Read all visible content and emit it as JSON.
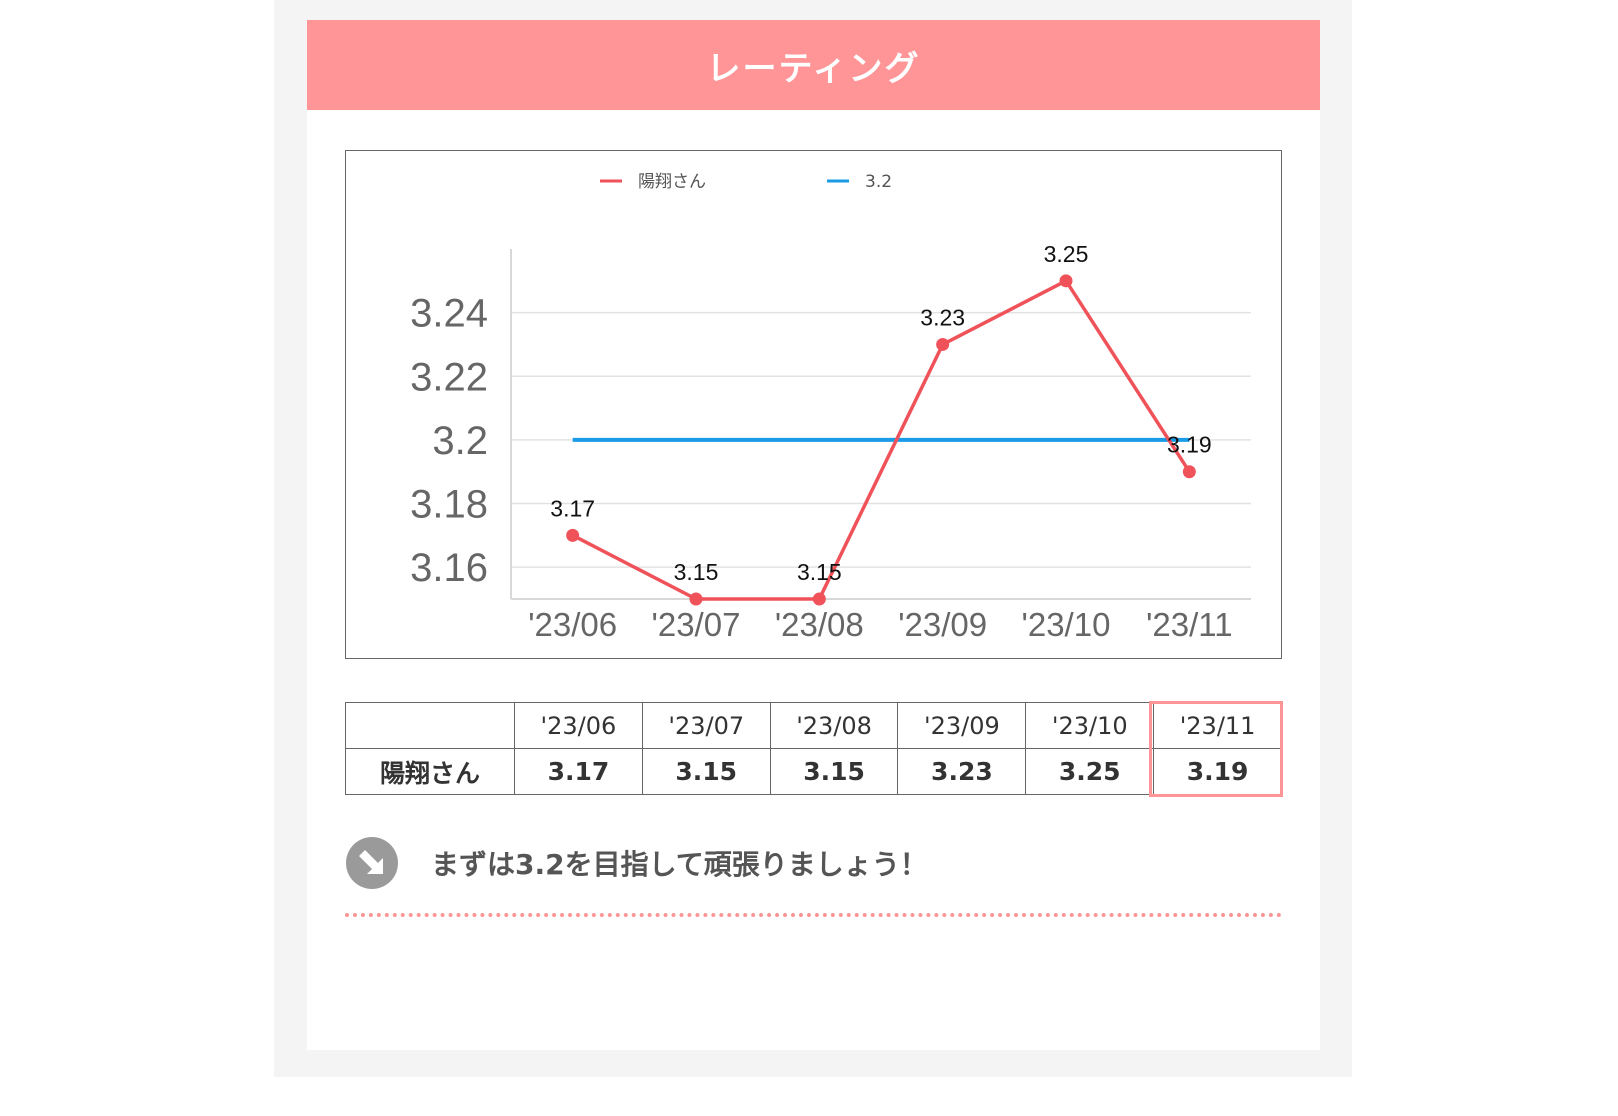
{
  "header": {
    "title": "レーティング"
  },
  "legend": {
    "series_label": "陽翔さん",
    "target_label": "3.2"
  },
  "chart_data": {
    "type": "line",
    "categories": [
      "'23/06",
      "'23/07",
      "'23/08",
      "'23/09",
      "'23/10",
      "'23/11"
    ],
    "series": [
      {
        "name": "陽翔さん",
        "values": [
          3.17,
          3.15,
          3.15,
          3.23,
          3.25,
          3.19
        ],
        "color": "#f0525a"
      },
      {
        "name": "3.2",
        "values": [
          3.2,
          3.2,
          3.2,
          3.2,
          3.2,
          3.2
        ],
        "color": "#1a9be6"
      }
    ],
    "data_labels": [
      "3.17",
      "3.15",
      "3.15",
      "3.23",
      "3.25",
      "3.19"
    ],
    "y_ticks": [
      "3.16",
      "3.18",
      "3.2",
      "3.22",
      "3.24"
    ],
    "ylim": [
      3.15,
      3.26
    ],
    "grid": true,
    "legend_position": "top"
  },
  "table": {
    "header": [
      "",
      "'23/06",
      "'23/07",
      "'23/08",
      "'23/09",
      "'23/10",
      "'23/11"
    ],
    "row_label": "陽翔さん",
    "values": [
      "3.17",
      "3.15",
      "3.15",
      "3.23",
      "3.25",
      "3.19"
    ],
    "highlight_color": "#ff9597"
  },
  "message": {
    "text": "まずは3.2を目指して頑張りましょう！",
    "icon": "arrow-down-right-circle-icon"
  },
  "colors": {
    "accent": "#ff9597",
    "series": "#f0525a",
    "target": "#1a9be6"
  }
}
